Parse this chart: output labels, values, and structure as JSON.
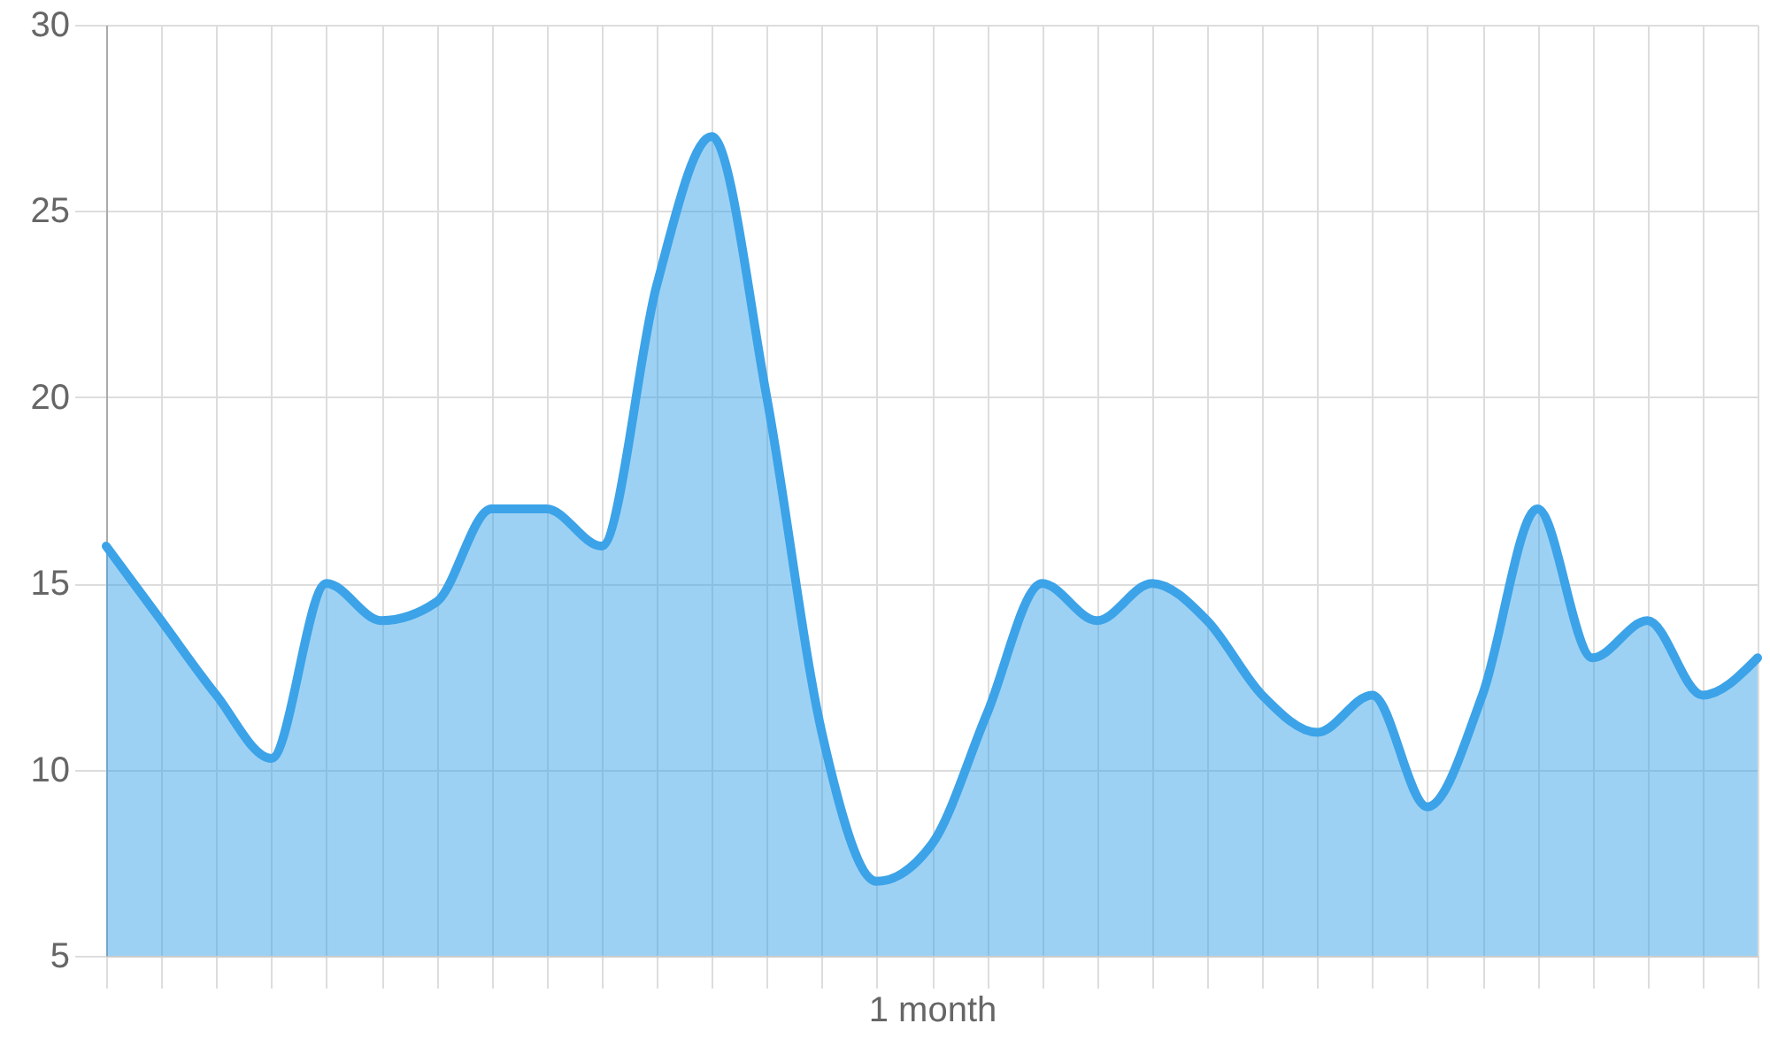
{
  "chart_data": {
    "type": "area",
    "xlabel": "1 month",
    "categories": [
      null,
      null,
      null,
      null,
      null,
      null,
      null,
      null,
      null,
      null,
      null,
      null,
      null,
      null,
      null,
      null,
      null,
      null,
      null,
      null,
      null,
      null,
      null,
      null,
      null,
      null,
      null,
      null,
      null,
      null,
      null
    ],
    "series": [
      {
        "color": "#3ca3e8",
        "values": [
          16,
          14,
          12,
          10.3,
          15,
          14,
          14.5,
          17,
          17,
          16,
          23,
          27,
          20,
          11,
          7,
          8,
          11.5,
          15,
          14,
          15,
          14,
          12,
          11,
          12,
          9,
          12,
          17,
          13,
          14,
          12,
          13
        ]
      }
    ],
    "ylim": [
      5,
      30
    ],
    "yticks": [
      5,
      10,
      15,
      20,
      25,
      30
    ],
    "grid": true,
    "tick_labels": "y"
  }
}
